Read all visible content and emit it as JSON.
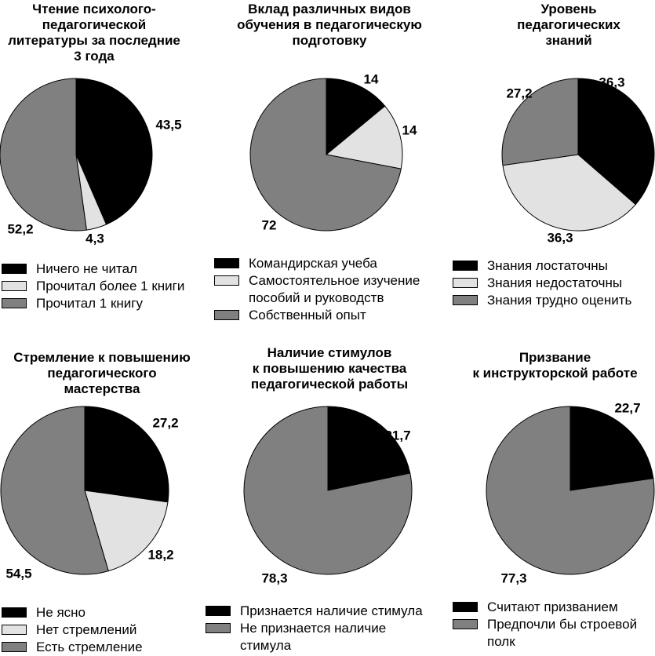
{
  "colors": {
    "black": "#000000",
    "light": "#e2e2e2",
    "gray": "#808080"
  },
  "chart_data": [
    {
      "type": "pie",
      "title": [
        "Чтение психолого-",
        "педагогической",
        "литературы за последние",
        "3 года"
      ],
      "slices": [
        {
          "label": "Ничего не читал",
          "value": 43.5,
          "display": "43,5",
          "color": "#000000"
        },
        {
          "label": "Прочитал более 1 книги",
          "value": 4.3,
          "display": "4,3",
          "color": "#e2e2e2"
        },
        {
          "label": "Прочитал 1 книгу",
          "value": 52.2,
          "display": "52,2",
          "color": "#808080"
        }
      ],
      "legend": [
        {
          "lines": [
            "Ничего не читал"
          ],
          "color": "#000000"
        },
        {
          "lines": [
            "Прочитал более 1 книги"
          ],
          "color": "#e2e2e2"
        },
        {
          "lines": [
            "Прочитал 1 книгу"
          ],
          "color": "#808080"
        }
      ]
    },
    {
      "type": "pie",
      "title": [
        "Вклад различных видов",
        "обучения в педагогическую",
        "подготовку"
      ],
      "slices": [
        {
          "label": "Командирская учеба",
          "value": 14,
          "display": "14",
          "color": "#000000"
        },
        {
          "label": "Самостоятельное изучение пособий и руководств",
          "value": 14,
          "display": "14",
          "color": "#e2e2e2"
        },
        {
          "label": "Собственный опыт",
          "value": 72,
          "display": "72",
          "color": "#808080"
        }
      ],
      "legend": [
        {
          "lines": [
            "Командирская учеба"
          ],
          "color": "#000000"
        },
        {
          "lines": [
            "Самостоятельное изучение",
            "пособий и руководств"
          ],
          "color": "#e2e2e2"
        },
        {
          "lines": [
            "Собственный опыт"
          ],
          "color": "#808080"
        }
      ]
    },
    {
      "type": "pie",
      "title": [
        "Уровень",
        "педагогических",
        "знаний"
      ],
      "slices": [
        {
          "label": "Знания лостаточны",
          "value": 36.3,
          "display": "36,3",
          "color": "#000000"
        },
        {
          "label": "Знания недостаточны",
          "value": 36.3,
          "display": "36,3",
          "color": "#e2e2e2"
        },
        {
          "label": "Знания трудно оценить",
          "value": 27.2,
          "display": "27,2",
          "color": "#808080"
        }
      ],
      "legend": [
        {
          "lines": [
            "Знания лостаточны"
          ],
          "color": "#000000"
        },
        {
          "lines": [
            "Знания недостаточны"
          ],
          "color": "#e2e2e2"
        },
        {
          "lines": [
            "Знания трудно оценить"
          ],
          "color": "#808080"
        }
      ]
    },
    {
      "type": "pie",
      "title": [
        "Стремление к повышению",
        "педагогического",
        "мастерства"
      ],
      "slices": [
        {
          "label": "Не ясно",
          "value": 27.2,
          "display": "27,2",
          "color": "#000000"
        },
        {
          "label": "Нет стремлений",
          "value": 18.2,
          "display": "18,2",
          "color": "#e2e2e2"
        },
        {
          "label": "Есть стремление",
          "value": 54.5,
          "display": "54,5",
          "color": "#808080"
        }
      ],
      "legend": [
        {
          "lines": [
            "Не ясно"
          ],
          "color": "#000000"
        },
        {
          "lines": [
            "Нет стремлений"
          ],
          "color": "#e2e2e2"
        },
        {
          "lines": [
            "Есть стремление"
          ],
          "color": "#808080"
        }
      ]
    },
    {
      "type": "pie",
      "title": [
        "Наличие стимулов",
        "к повышению качества",
        "педагогической работы"
      ],
      "slices": [
        {
          "label": "Признается наличие стимула",
          "value": 21.7,
          "display": "21,7",
          "color": "#000000"
        },
        {
          "label": "Не признается наличие стимула",
          "value": 78.3,
          "display": "78,3",
          "color": "#808080"
        }
      ],
      "legend": [
        {
          "lines": [
            "Признается наличие стимула"
          ],
          "color": "#000000"
        },
        {
          "lines": [
            "Не признается наличие",
            "стимула"
          ],
          "color": "#808080"
        }
      ]
    },
    {
      "type": "pie",
      "title": [
        "Призвание",
        "к инструкторской работе"
      ],
      "slices": [
        {
          "label": "Считают призванием",
          "value": 22.7,
          "display": "22,7",
          "color": "#000000"
        },
        {
          "label": "Предпочли бы строевой полк",
          "value": 77.3,
          "display": "77,3",
          "color": "#808080"
        }
      ],
      "legend": [
        {
          "lines": [
            "Считают призванием"
          ],
          "color": "#000000"
        },
        {
          "lines": [
            "Предпочли бы строевой",
            "полк"
          ],
          "color": "#808080"
        }
      ]
    }
  ]
}
